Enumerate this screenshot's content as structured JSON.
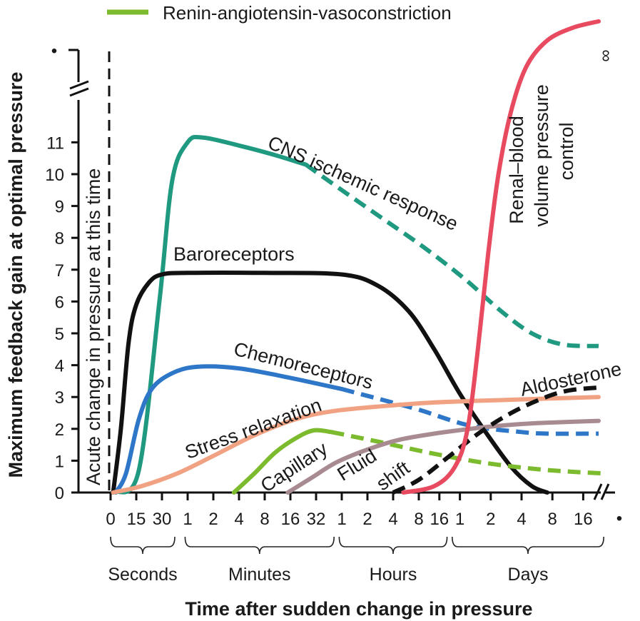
{
  "chart_data": {
    "type": "line",
    "xlabel": "Time after sudden change in pressure",
    "ylabel": "Maximum feedback gain at optimal pressure",
    "ylim": [
      0,
      11
    ],
    "y_ticks": [
      "0",
      "1",
      "2",
      "3",
      "4",
      "5",
      "6",
      "7",
      "8",
      "9",
      "10",
      "11"
    ],
    "y_break_top": "•",
    "infinity_label": "∞",
    "x_end_label": "•",
    "x_ticks": [
      {
        "label": "0",
        "x": 0
      },
      {
        "label": "15",
        "x": 0.5
      },
      {
        "label": "30",
        "x": 1
      },
      {
        "label": "1",
        "x": 1.5
      },
      {
        "label": "2",
        "x": 2
      },
      {
        "label": "4",
        "x": 2.5
      },
      {
        "label": "8",
        "x": 3
      },
      {
        "label": "16",
        "x": 3.5
      },
      {
        "label": "32",
        "x": 4
      },
      {
        "label": "1",
        "x": 4.5
      },
      {
        "label": "2",
        "x": 5
      },
      {
        "label": "4",
        "x": 5.5
      },
      {
        "label": "8",
        "x": 6
      },
      {
        "label": "16",
        "x": 6.4
      },
      {
        "label": "1",
        "x": 6.8
      },
      {
        "label": "2",
        "x": 7.4
      },
      {
        "label": "4",
        "x": 8
      },
      {
        "label": "8",
        "x": 8.6
      },
      {
        "label": "16",
        "x": 9.2
      }
    ],
    "time_groups": [
      {
        "label": "Seconds",
        "from": 0,
        "to": 1.25
      },
      {
        "label": "Minutes",
        "from": 1.45,
        "to": 4.35
      },
      {
        "label": "Hours",
        "from": 4.45,
        "to": 6.55
      },
      {
        "label": "Days",
        "from": 6.65,
        "to": 9.6
      }
    ],
    "acute_line_label": "Acute change in pressure at this time",
    "legend": [
      {
        "name": "Renin-angiotensin-vasoconstriction",
        "color": "#7cba2e"
      }
    ],
    "series": [
      {
        "name": "CNS ischemic response",
        "color": "#1f9980",
        "solid": [
          [
            0.1,
            0
          ],
          [
            0.55,
            0.7
          ],
          [
            0.95,
            6
          ],
          [
            1.2,
            9.8
          ],
          [
            1.5,
            11
          ],
          [
            1.8,
            11.15
          ],
          [
            2.5,
            10.9
          ],
          [
            3.2,
            10.6
          ],
          [
            3.8,
            10.3
          ]
        ],
        "dashed": [
          [
            3.8,
            10.3
          ],
          [
            4.5,
            9.5
          ],
          [
            5.3,
            8.6
          ],
          [
            6.1,
            7.7
          ],
          [
            6.9,
            6.7
          ],
          [
            7.6,
            5.7
          ],
          [
            8.2,
            5.0
          ],
          [
            8.8,
            4.65
          ],
          [
            9.5,
            4.6
          ]
        ]
      },
      {
        "name": "Baroreceptors",
        "color": "#111111",
        "solid": [
          [
            0.05,
            0
          ],
          [
            0.2,
            2.0
          ],
          [
            0.35,
            4.7
          ],
          [
            0.5,
            5.9
          ],
          [
            0.75,
            6.6
          ],
          [
            1.0,
            6.85
          ],
          [
            1.5,
            6.9
          ],
          [
            3,
            6.9
          ],
          [
            4.5,
            6.85
          ],
          [
            5.2,
            6.5
          ],
          [
            5.8,
            5.7
          ],
          [
            6.3,
            4.5
          ],
          [
            6.8,
            3.1
          ],
          [
            7.3,
            1.9
          ],
          [
            7.8,
            0.8
          ],
          [
            8.2,
            0.2
          ],
          [
            8.5,
            0
          ]
        ]
      },
      {
        "name": "Chemoreceptors",
        "color": "#2e77c8",
        "solid": [
          [
            0.1,
            0
          ],
          [
            0.3,
            0.6
          ],
          [
            0.55,
            2.3
          ],
          [
            0.8,
            3.25
          ],
          [
            1.2,
            3.75
          ],
          [
            1.7,
            3.95
          ],
          [
            2.5,
            3.9
          ],
          [
            3.5,
            3.6
          ],
          [
            4.5,
            3.25
          ]
        ],
        "dashed": [
          [
            4.5,
            3.25
          ],
          [
            5.2,
            2.95
          ],
          [
            6,
            2.6
          ],
          [
            7,
            2.1
          ],
          [
            8,
            1.9
          ],
          [
            8.5,
            1.85
          ],
          [
            9.5,
            1.85
          ]
        ]
      },
      {
        "name": "Stress relaxation",
        "color": "#f0a282",
        "solid": [
          [
            0.05,
            0
          ],
          [
            0.6,
            0.2
          ],
          [
            1.3,
            0.6
          ],
          [
            2.0,
            1.15
          ],
          [
            2.8,
            1.8
          ],
          [
            3.6,
            2.3
          ],
          [
            4.3,
            2.55
          ],
          [
            5.2,
            2.7
          ],
          [
            6.2,
            2.82
          ],
          [
            7.5,
            2.9
          ],
          [
            8.5,
            2.95
          ],
          [
            9.5,
            3.0
          ]
        ]
      },
      {
        "name": "Renin-angiotensin-vasoconstriction",
        "color": "#7cba2e",
        "solid": [
          [
            2.4,
            0
          ],
          [
            2.8,
            0.6
          ],
          [
            3.2,
            1.25
          ],
          [
            3.6,
            1.7
          ],
          [
            3.95,
            1.95
          ],
          [
            4.3,
            1.9
          ]
        ],
        "dashed": [
          [
            4.3,
            1.9
          ],
          [
            5.2,
            1.6
          ],
          [
            6.2,
            1.25
          ],
          [
            7.2,
            0.95
          ],
          [
            8.2,
            0.75
          ],
          [
            9.0,
            0.65
          ],
          [
            9.6,
            0.6
          ]
        ]
      },
      {
        "name": "Fluid shift",
        "color": "#a88a91",
        "solid": [
          [
            3.45,
            0
          ],
          [
            3.9,
            0.45
          ],
          [
            4.4,
            0.95
          ],
          [
            5.0,
            1.35
          ],
          [
            5.6,
            1.65
          ],
          [
            6.3,
            1.85
          ],
          [
            7.0,
            2.0
          ],
          [
            7.6,
            2.1
          ],
          [
            8.3,
            2.18
          ],
          [
            9.5,
            2.25
          ]
        ]
      },
      {
        "name": "Aldosterone",
        "color": "#111111",
        "dashed": [
          [
            5.5,
            0
          ],
          [
            6.0,
            0.4
          ],
          [
            6.6,
            1.15
          ],
          [
            7.2,
            1.9
          ],
          [
            7.8,
            2.5
          ],
          [
            8.4,
            2.95
          ],
          [
            8.9,
            3.2
          ],
          [
            9.5,
            3.3
          ]
        ]
      },
      {
        "name": "Renal–blood volume pressure control",
        "color": "#e84a5f",
        "solid": [
          [
            5.7,
            0
          ],
          [
            6.3,
            0.2
          ],
          [
            6.7,
            0.8
          ],
          [
            6.95,
            2.0
          ],
          [
            7.15,
            4.5
          ],
          [
            7.35,
            7.5
          ],
          [
            7.55,
            10.0
          ],
          [
            7.8,
            12.0
          ],
          [
            8.1,
            13.4
          ],
          [
            8.5,
            14.2
          ],
          [
            9.0,
            14.6
          ],
          [
            9.5,
            14.8
          ]
        ]
      }
    ],
    "labels": {
      "cns": "CNS ischemic response",
      "baro": "Baroreceptors",
      "chemo": "Chemoreceptors",
      "stress": "Stress relaxation",
      "capillary": "Capillary",
      "fluid": "Fluid",
      "shift": "shift",
      "aldosterone": "Aldosterone",
      "renal_line1": "Renal–blood",
      "renal_line2": "volume pressure",
      "renal_line3": "control"
    }
  }
}
